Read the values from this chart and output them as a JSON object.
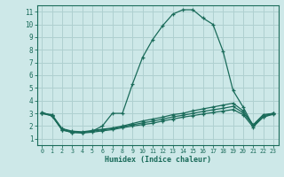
{
  "xlabel": "Humidex (Indice chaleur)",
  "background_color": "#cde8e8",
  "grid_color": "#afd0d0",
  "line_color": "#1a6b5a",
  "xlim": [
    -0.5,
    23.5
  ],
  "ylim": [
    0.5,
    11.5
  ],
  "x_ticks": [
    0,
    1,
    2,
    3,
    4,
    5,
    6,
    7,
    8,
    9,
    10,
    11,
    12,
    13,
    14,
    15,
    16,
    17,
    18,
    19,
    20,
    21,
    22,
    23
  ],
  "y_ticks": [
    1,
    2,
    3,
    4,
    5,
    6,
    7,
    8,
    9,
    10,
    11
  ],
  "series": [
    {
      "x": [
        0,
        1,
        2,
        3,
        4,
        5,
        6,
        7,
        8,
        9,
        10,
        11,
        12,
        13,
        14,
        15,
        16,
        17,
        18,
        19,
        20,
        21,
        22,
        23
      ],
      "y": [
        3.1,
        2.8,
        1.7,
        1.5,
        1.5,
        1.6,
        2.0,
        3.0,
        3.0,
        5.3,
        7.4,
        8.8,
        9.9,
        10.8,
        11.15,
        11.15,
        10.5,
        10.0,
        7.9,
        4.8,
        3.5,
        2.0,
        2.7,
        3.0
      ]
    },
    {
      "x": [
        0,
        1,
        2,
        3,
        4,
        5,
        6,
        7,
        8,
        9,
        10,
        11,
        12,
        13,
        14,
        15,
        16,
        17,
        18,
        19,
        20,
        21,
        22,
        23
      ],
      "y": [
        3.0,
        2.9,
        1.8,
        1.6,
        1.55,
        1.65,
        1.75,
        1.85,
        2.0,
        2.2,
        2.4,
        2.55,
        2.7,
        2.9,
        3.0,
        3.2,
        3.35,
        3.5,
        3.65,
        3.8,
        3.2,
        2.1,
        2.9,
        3.0
      ]
    },
    {
      "x": [
        0,
        1,
        2,
        3,
        4,
        5,
        6,
        7,
        8,
        9,
        10,
        11,
        12,
        13,
        14,
        15,
        16,
        17,
        18,
        19,
        20,
        21,
        22,
        23
      ],
      "y": [
        3.0,
        2.85,
        1.75,
        1.55,
        1.5,
        1.6,
        1.7,
        1.8,
        1.95,
        2.1,
        2.25,
        2.38,
        2.55,
        2.72,
        2.85,
        3.0,
        3.15,
        3.28,
        3.4,
        3.55,
        3.05,
        2.05,
        2.82,
        3.0
      ]
    },
    {
      "x": [
        0,
        1,
        2,
        3,
        4,
        5,
        6,
        7,
        8,
        9,
        10,
        11,
        12,
        13,
        14,
        15,
        16,
        17,
        18,
        19,
        20,
        21,
        22,
        23
      ],
      "y": [
        3.0,
        2.8,
        1.7,
        1.5,
        1.45,
        1.52,
        1.62,
        1.72,
        1.87,
        2.0,
        2.12,
        2.22,
        2.4,
        2.55,
        2.7,
        2.82,
        2.95,
        3.07,
        3.18,
        3.3,
        2.9,
        1.92,
        2.72,
        2.92
      ]
    }
  ]
}
